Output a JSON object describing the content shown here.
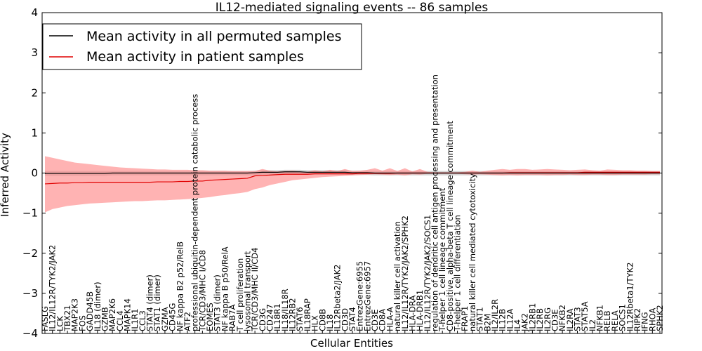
{
  "chart_data": {
    "type": "line",
    "title": "IL12-mediated signaling events -- 86 samples",
    "xlabel": "Cellular Entities",
    "ylabel": "Inferred Activity",
    "ylim": [
      -4,
      4
    ],
    "yticks": [
      -4,
      -3,
      -2,
      -1,
      0,
      1,
      2,
      3,
      4
    ],
    "legend_position": "top-left",
    "colors": {
      "permuted_line": "#000000",
      "patient_line": "#e00000",
      "patient_band": "#ff8080",
      "permuted_band": "#a0a0a0"
    },
    "categories": [
      "FASLG",
      "IL12/IL12R/TYK2/JAK2",
      "LCK",
      "TBX21",
      "MAP2K3",
      "FOS",
      "GADD45B",
      "IL18 (dimer)",
      "GZMB",
      "MAP2K6",
      "CCL4",
      "MAPK14",
      "IL1R1",
      "CCL3",
      "STAT4 (dimer)",
      "STAT1 (dimer)",
      "GZMA",
      "CD45G",
      "NF kappa B2 p52/RelB",
      "ATF2",
      "professional ubiquitin-dependent protein catabolic process",
      "TCR/CD3/MHC I/CD8",
      "EOMES",
      "STAT3 (dimer)",
      "NF kappa B p50/RelA",
      "RAB7A",
      "T cell proliferation",
      "lysosomal transport",
      "TCR/CD3/MHC II/CD4",
      "CD3G",
      "CD247",
      "IL18R1",
      "IL18/IL18R",
      "IL12RB2",
      "STAT6",
      "IL18RAP",
      "HLX",
      "CD8B",
      "IL18",
      "IL12Rbeta2/JAK2",
      "CD3D",
      "STAT4",
      "EntrezGene:6955",
      "EntrezGene:6957",
      "CD3E",
      "CD8A",
      "HLA-A",
      "natural killer cell activation",
      "IL12/IL12R/TYK2/JAK2/SPHK2",
      "HLA-DRA",
      "HLA-DRB1",
      "IL12/IL12R/TYK2/JAK2/SOCS1",
      "regulation of dendritic cell antigen processing and presentation",
      "T-helper 1 cell lineage commitment",
      "CD8-positive, alpha-beta T cell lineage commitment",
      "T-helper 1 cell differentiation",
      "FRAP1",
      "natural killer cell mediated cytotoxicity",
      "STAT1",
      "B2M",
      "IL2/IL2R",
      "IL12B",
      "IL12A",
      "IL4",
      "JAK2",
      "IL2RB1",
      "IL2RB",
      "IL2RG",
      "CD3E",
      "NFKB2",
      "IL2RA",
      "STAT3",
      "STAT5A",
      "IL2",
      "NFKB1",
      "RELB",
      "RELA",
      "SOCS1",
      "IL12Rbeta1/TYK2",
      "RIPK2",
      "IFNG",
      "RHOA",
      "SPHK2"
    ],
    "series": [
      {
        "name": "Mean activity in all permuted samples",
        "values": [
          -0.01,
          -0.01,
          -0.01,
          -0.01,
          -0.01,
          -0.01,
          -0.01,
          -0.01,
          -0.01,
          0.0,
          0.0,
          0.0,
          0.0,
          0.0,
          0.0,
          0.0,
          0.0,
          0.0,
          0.0,
          0.0,
          0.0,
          0.0,
          0.0,
          0.0,
          0.0,
          0.0,
          0.0,
          0.0,
          0.01,
          0.02,
          0.02,
          0.02,
          0.03,
          0.03,
          0.03,
          0.02,
          0.02,
          0.02,
          0.02,
          0.02,
          0.02,
          0.01,
          0.01,
          0.01,
          0.0,
          0.0,
          0.0,
          0.0,
          0.0,
          0.0,
          0.0,
          0.0,
          0.0,
          0.0,
          0.0,
          0.0,
          0.0,
          0.0,
          0.0,
          0.0,
          0.0,
          0.0,
          0.0,
          0.0,
          0.0,
          0.0,
          0.0,
          0.0,
          0.0,
          0.0,
          0.0,
          0.0,
          0.0,
          0.0,
          0.0,
          0.0,
          0.0,
          0.0,
          0.0,
          0.0,
          0.0,
          0.0,
          0.0
        ]
      },
      {
        "name": "Mean activity in patient samples",
        "values": [
          -0.27,
          -0.26,
          -0.25,
          -0.25,
          -0.24,
          -0.24,
          -0.23,
          -0.23,
          -0.23,
          -0.23,
          -0.23,
          -0.23,
          -0.23,
          -0.23,
          -0.23,
          -0.22,
          -0.22,
          -0.22,
          -0.21,
          -0.21,
          -0.2,
          -0.2,
          -0.18,
          -0.17,
          -0.16,
          -0.15,
          -0.14,
          -0.13,
          -0.07,
          -0.06,
          -0.05,
          -0.04,
          -0.03,
          -0.03,
          -0.03,
          -0.03,
          -0.02,
          -0.02,
          -0.02,
          -0.02,
          -0.02,
          -0.02,
          -0.01,
          -0.01,
          -0.01,
          -0.01,
          -0.01,
          0.0,
          0.0,
          0.0,
          0.0,
          0.0,
          0.0,
          0.0,
          0.0,
          0.0,
          0.0,
          0.0,
          0.0,
          0.0,
          0.0,
          0.0,
          0.01,
          0.01,
          0.01,
          0.01,
          0.01,
          0.01,
          0.01,
          0.01,
          0.01,
          0.01,
          0.02,
          0.02,
          0.02,
          0.02,
          0.02,
          0.02,
          0.02,
          0.02,
          0.02,
          0.02,
          0.02
        ]
      }
    ],
    "patient_band": {
      "upper": [
        0.42,
        0.38,
        0.34,
        0.3,
        0.26,
        0.24,
        0.22,
        0.2,
        0.18,
        0.16,
        0.14,
        0.13,
        0.12,
        0.11,
        0.1,
        0.09,
        0.09,
        0.08,
        0.08,
        0.08,
        0.07,
        0.07,
        0.06,
        0.06,
        0.06,
        0.05,
        0.05,
        0.05,
        0.05,
        0.1,
        0.06,
        0.04,
        0.05,
        0.06,
        0.04,
        0.03,
        0.07,
        0.04,
        0.08,
        0.05,
        0.1,
        0.05,
        0.06,
        0.08,
        0.12,
        0.06,
        0.12,
        0.05,
        0.12,
        0.04,
        0.1,
        0.03,
        0.02,
        0.02,
        0.02,
        0.02,
        0.03,
        0.06,
        0.03,
        0.06,
        0.08,
        0.1,
        0.08,
        0.1,
        0.1,
        0.08,
        0.09,
        0.1,
        0.09,
        0.08,
        0.07,
        0.08,
        0.09,
        0.07,
        0.06,
        0.09,
        0.08,
        0.07,
        0.07,
        0.06,
        0.06,
        0.05,
        0.05
      ],
      "lower": [
        -0.98,
        -0.9,
        -0.86,
        -0.82,
        -0.8,
        -0.78,
        -0.76,
        -0.75,
        -0.74,
        -0.73,
        -0.72,
        -0.71,
        -0.7,
        -0.7,
        -0.69,
        -0.68,
        -0.68,
        -0.67,
        -0.66,
        -0.65,
        -0.64,
        -0.62,
        -0.6,
        -0.57,
        -0.55,
        -0.52,
        -0.5,
        -0.47,
        -0.4,
        -0.36,
        -0.3,
        -0.26,
        -0.22,
        -0.18,
        -0.16,
        -0.14,
        -0.12,
        -0.1,
        -0.09,
        -0.08,
        -0.07,
        -0.06,
        -0.05,
        -0.04,
        -0.03,
        -0.04,
        -0.05,
        -0.04,
        -0.06,
        -0.03,
        -0.04,
        -0.02,
        -0.02,
        -0.02,
        -0.02,
        -0.02,
        -0.03,
        -0.04,
        -0.03,
        -0.04,
        -0.05,
        -0.06,
        -0.05,
        -0.06,
        -0.05,
        -0.05,
        -0.05,
        -0.06,
        -0.05,
        -0.05,
        -0.04,
        -0.05,
        -0.05,
        -0.04,
        -0.04,
        -0.05,
        -0.05,
        -0.04,
        -0.04,
        -0.04,
        -0.04,
        -0.03,
        -0.03
      ]
    },
    "permuted_band": {
      "upper": [
        0.05,
        0.05,
        0.05,
        0.05,
        0.05,
        0.05,
        0.05,
        0.05,
        0.05,
        0.05,
        0.05,
        0.05,
        0.05,
        0.05,
        0.05,
        0.05,
        0.05,
        0.05,
        0.05,
        0.05,
        0.05,
        0.05,
        0.05,
        0.05,
        0.05,
        0.05,
        0.05,
        0.05,
        0.06,
        0.07,
        0.07,
        0.07,
        0.08,
        0.08,
        0.08,
        0.07,
        0.07,
        0.07,
        0.07,
        0.07,
        0.07,
        0.06,
        0.06,
        0.06,
        0.05,
        0.05,
        0.05,
        0.05,
        0.05,
        0.05,
        0.05,
        0.05,
        0.05,
        0.05,
        0.05,
        0.05,
        0.05,
        0.05,
        0.05,
        0.05,
        0.05,
        0.05,
        0.05,
        0.05,
        0.05,
        0.05,
        0.05,
        0.05,
        0.05,
        0.05,
        0.05,
        0.05,
        0.05,
        0.05,
        0.05,
        0.05,
        0.05,
        0.05,
        0.05,
        0.05,
        0.05,
        0.05,
        0.05
      ],
      "lower": [
        -0.07,
        -0.07,
        -0.07,
        -0.07,
        -0.07,
        -0.07,
        -0.07,
        -0.07,
        -0.07,
        -0.06,
        -0.06,
        -0.06,
        -0.06,
        -0.06,
        -0.06,
        -0.06,
        -0.06,
        -0.06,
        -0.06,
        -0.06,
        -0.06,
        -0.06,
        -0.06,
        -0.06,
        -0.06,
        -0.06,
        -0.06,
        -0.06,
        -0.05,
        -0.04,
        -0.04,
        -0.04,
        -0.03,
        -0.03,
        -0.03,
        -0.04,
        -0.04,
        -0.04,
        -0.04,
        -0.04,
        -0.04,
        -0.05,
        -0.05,
        -0.05,
        -0.06,
        -0.06,
        -0.06,
        -0.06,
        -0.06,
        -0.06,
        -0.06,
        -0.06,
        -0.06,
        -0.06,
        -0.06,
        -0.06,
        -0.06,
        -0.06,
        -0.06,
        -0.06,
        -0.06,
        -0.06,
        -0.06,
        -0.06,
        -0.06,
        -0.06,
        -0.06,
        -0.06,
        -0.06,
        -0.06,
        -0.06,
        -0.06,
        -0.06,
        -0.06,
        -0.06,
        -0.06,
        -0.06,
        -0.06,
        -0.06,
        -0.06,
        -0.06,
        -0.06,
        -0.06
      ]
    }
  }
}
